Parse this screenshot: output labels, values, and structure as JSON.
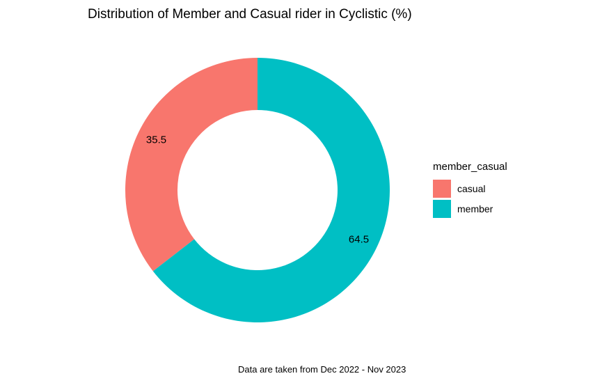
{
  "chart_data": {
    "type": "pie",
    "variant": "donut",
    "title": "Distribution of Member and Casual rider in Cyclistic (%)",
    "caption": "Data are taken from Dec 2022 - Nov 2023",
    "legend": {
      "title": "member_casual",
      "placement": "right"
    },
    "slices": [
      {
        "name": "casual",
        "value": 35.5,
        "label": "35.5",
        "color": "#F8766D"
      },
      {
        "name": "member",
        "value": 64.5,
        "label": "64.5",
        "color": "#00BFC4"
      }
    ]
  }
}
